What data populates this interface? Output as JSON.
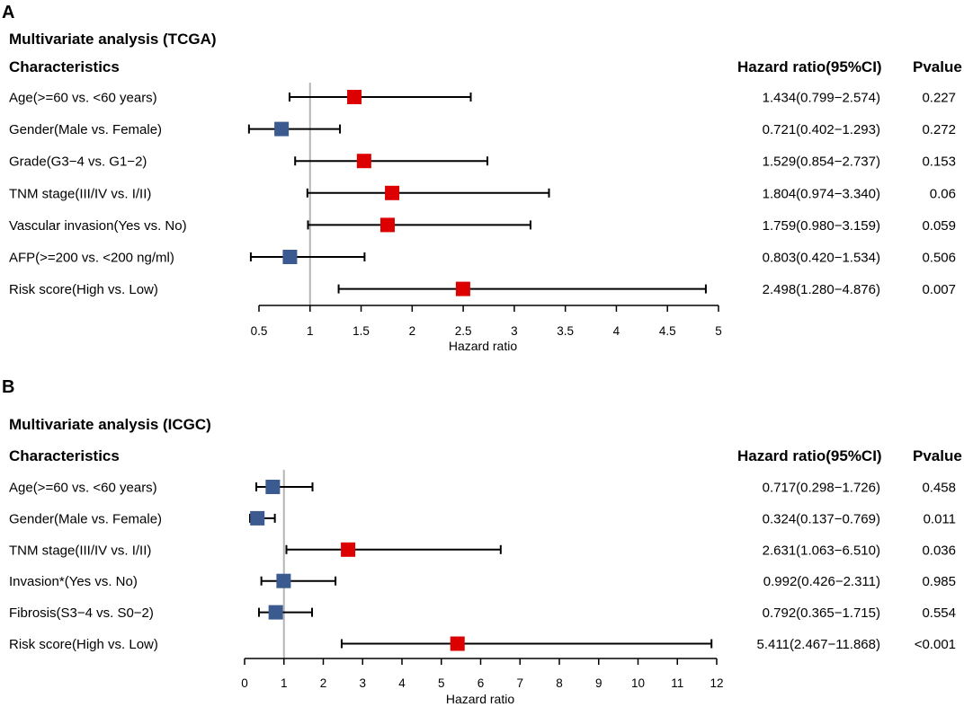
{
  "colors": {
    "risk": "#dd0000",
    "protective": "#3b5a8f",
    "line": "#000000",
    "refline": "#b5b5b5"
  },
  "chart_data": [
    {
      "type": "forest",
      "panel": "A",
      "title": "Multivariate analysis (TCGA)",
      "headers": {
        "characteristics": "Characteristics",
        "hr": "Hazard ratio(95%CI)",
        "p": "Pvalue"
      },
      "xlabel": "Hazard ratio",
      "xlim": [
        0.5,
        5
      ],
      "ticks": [
        "0.5",
        "1",
        "1.5",
        "2",
        "2.5",
        "3",
        "3.5",
        "4",
        "4.5",
        "5"
      ],
      "ref": 1,
      "rows": [
        {
          "label": "Age(>=60 vs. <60 years)",
          "hr": 1.434,
          "lo": 0.799,
          "hi": 2.574,
          "text": "1.434(0.799−2.574)",
          "p": "0.227"
        },
        {
          "label": "Gender(Male vs. Female)",
          "hr": 0.721,
          "lo": 0.402,
          "hi": 1.293,
          "text": "0.721(0.402−1.293)",
          "p": "0.272"
        },
        {
          "label": "Grade(G3−4 vs. G1−2)",
          "hr": 1.529,
          "lo": 0.854,
          "hi": 2.737,
          "text": "1.529(0.854−2.737)",
          "p": "0.153"
        },
        {
          "label": "TNM stage(III/IV vs. I/II)",
          "hr": 1.804,
          "lo": 0.974,
          "hi": 3.34,
          "text": "1.804(0.974−3.340)",
          "p": "0.06"
        },
        {
          "label": "Vascular invasion(Yes vs. No)",
          "hr": 1.759,
          "lo": 0.98,
          "hi": 3.159,
          "text": "1.759(0.980−3.159)",
          "p": "0.059"
        },
        {
          "label": "AFP(>=200 vs. <200 ng/ml)",
          "hr": 0.803,
          "lo": 0.42,
          "hi": 1.534,
          "text": "0.803(0.420−1.534)",
          "p": "0.506"
        },
        {
          "label": "Risk score(High vs. Low)",
          "hr": 2.498,
          "lo": 1.28,
          "hi": 4.876,
          "text": "2.498(1.280−4.876)",
          "p": "0.007"
        }
      ]
    },
    {
      "type": "forest",
      "panel": "B",
      "title": "Multivariate analysis (ICGC)",
      "headers": {
        "characteristics": "Characteristics",
        "hr": "Hazard ratio(95%CI)",
        "p": "Pvalue"
      },
      "xlabel": "Hazard ratio",
      "xlim": [
        0,
        12
      ],
      "ticks": [
        "0",
        "1",
        "2",
        "3",
        "4",
        "5",
        "6",
        "7",
        "8",
        "9",
        "10",
        "11",
        "12"
      ],
      "ref": 1,
      "rows": [
        {
          "label": "Age(>=60 vs. <60 years)",
          "hr": 0.717,
          "lo": 0.298,
          "hi": 1.726,
          "text": "0.717(0.298−1.726)",
          "p": "0.458"
        },
        {
          "label": "Gender(Male vs. Female)",
          "hr": 0.324,
          "lo": 0.137,
          "hi": 0.769,
          "text": "0.324(0.137−0.769)",
          "p": "0.011"
        },
        {
          "label": "TNM stage(III/IV vs. I/II)",
          "hr": 2.631,
          "lo": 1.063,
          "hi": 6.51,
          "text": "2.631(1.063−6.510)",
          "p": "0.036"
        },
        {
          "label": "Invasion*(Yes vs. No)",
          "hr": 0.992,
          "lo": 0.426,
          "hi": 2.311,
          "text": "0.992(0.426−2.311)",
          "p": "0.985"
        },
        {
          "label": "Fibrosis(S3−4 vs. S0−2)",
          "hr": 0.792,
          "lo": 0.365,
          "hi": 1.715,
          "text": "0.792(0.365−1.715)",
          "p": "0.554"
        },
        {
          "label": "Risk score(High vs. Low)",
          "hr": 5.411,
          "lo": 2.467,
          "hi": 11.868,
          "text": "5.411(2.467−11.868)",
          "p": "<0.001"
        }
      ]
    }
  ]
}
